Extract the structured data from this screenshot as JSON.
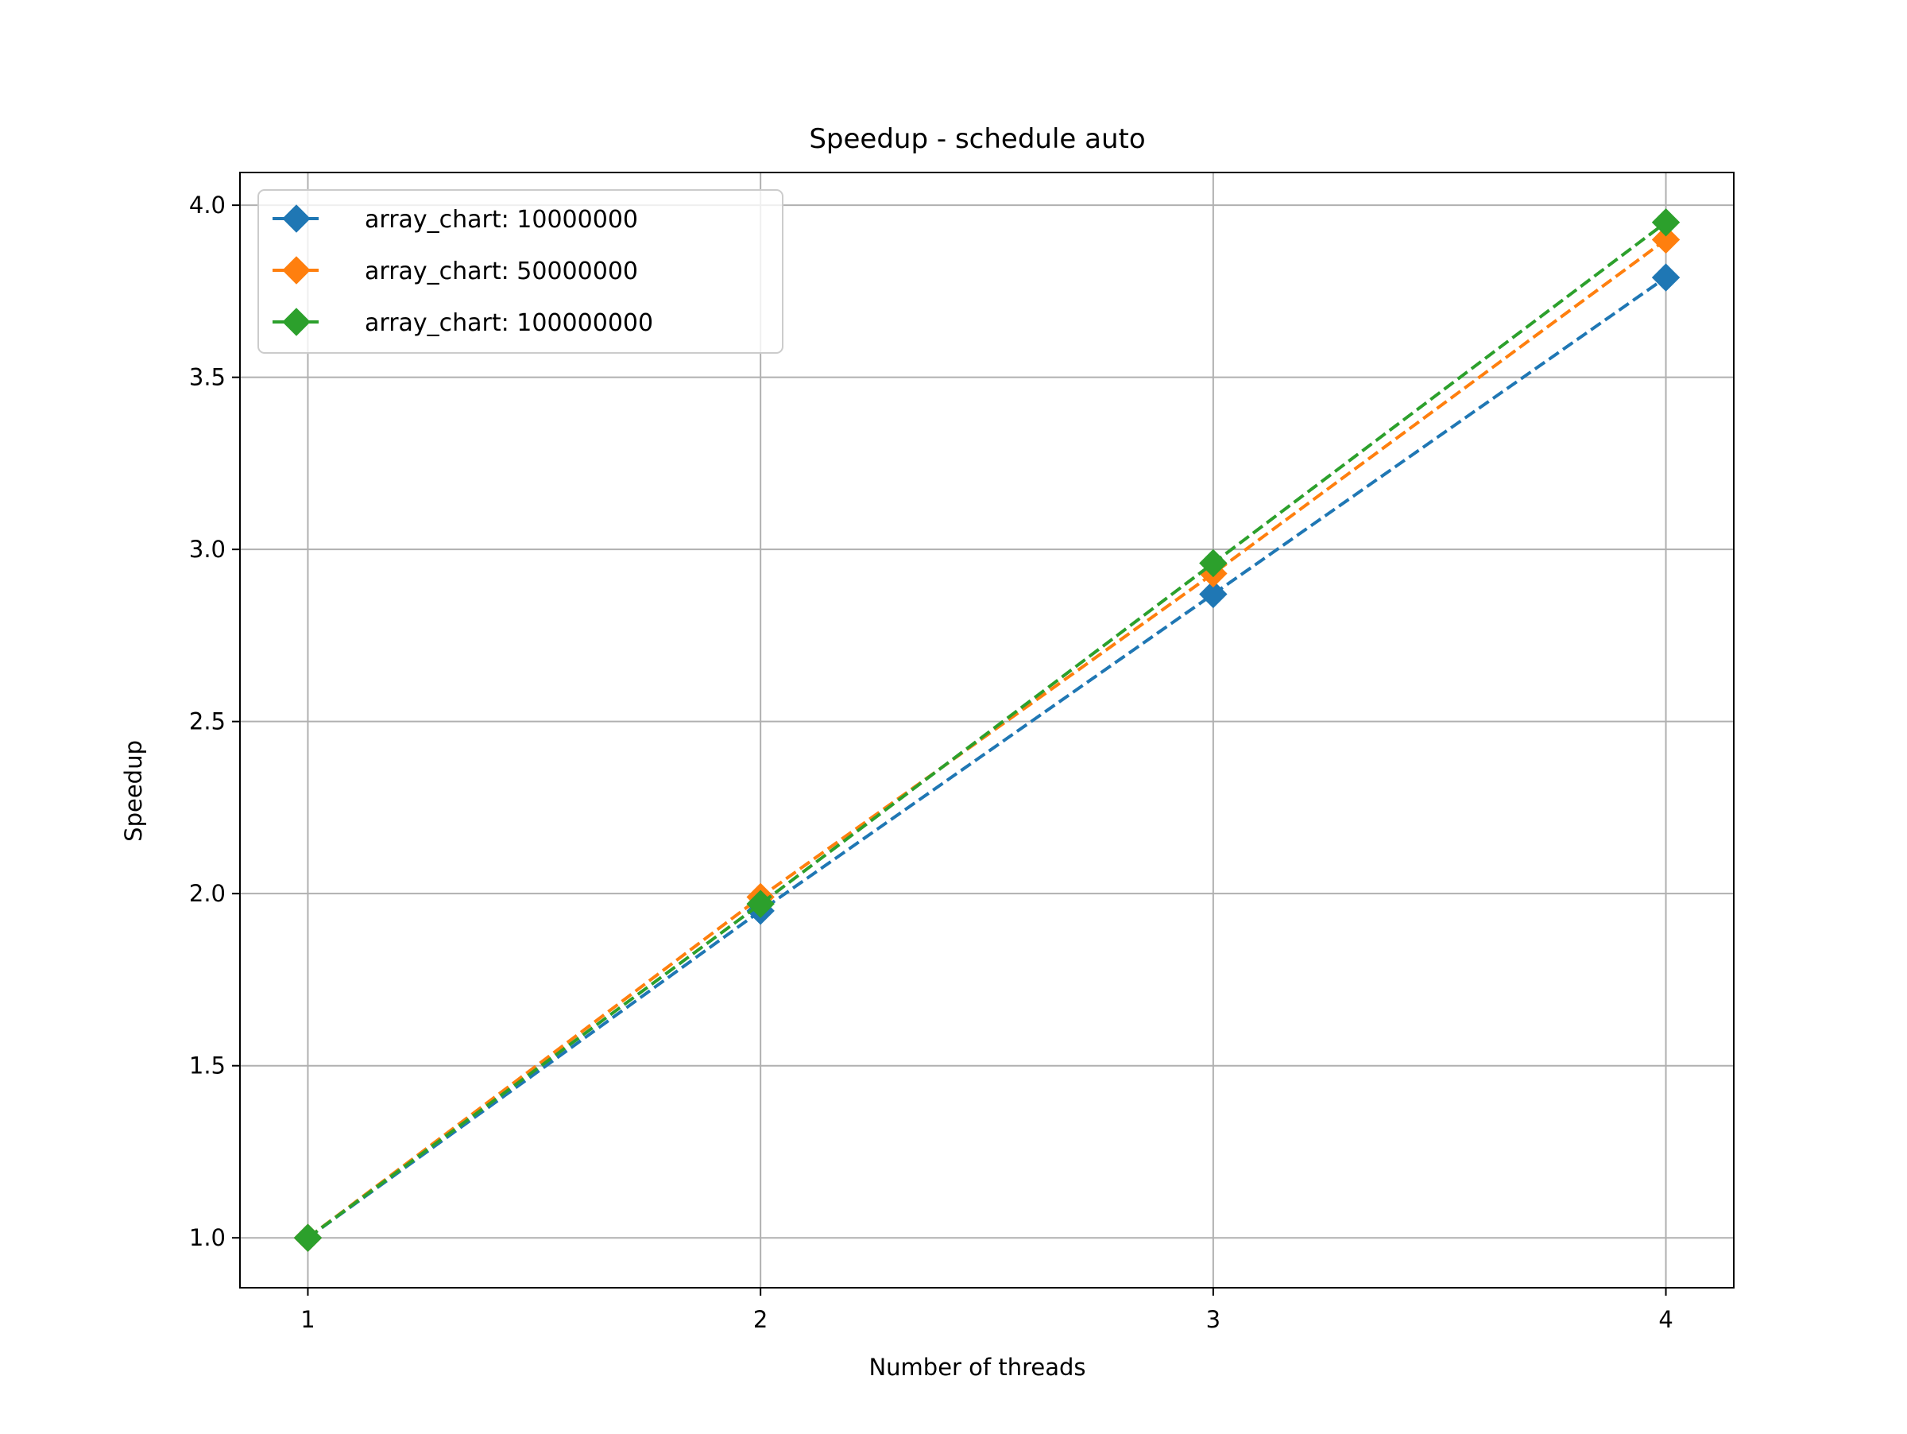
{
  "chart_data": {
    "type": "line",
    "title": "Speedup - schedule auto",
    "xlabel": "Number of threads",
    "ylabel": "Speedup",
    "x": [
      1,
      2,
      3,
      4
    ],
    "xticks": [
      "1",
      "2",
      "3",
      "4"
    ],
    "yticks": [
      "1.0",
      "1.5",
      "2.0",
      "2.5",
      "3.0",
      "3.5",
      "4.0"
    ],
    "xlim": [
      0.85,
      4.15
    ],
    "ylim": [
      0.855,
      4.095
    ],
    "grid": true,
    "legend_position": "top-left",
    "series": [
      {
        "name": "array_chart: 10000000",
        "color": "#1f77b4",
        "values": [
          1.0,
          1.95,
          2.87,
          3.79
        ]
      },
      {
        "name": "array_chart: 50000000",
        "color": "#ff7f0e",
        "values": [
          1.0,
          1.99,
          2.93,
          3.9
        ]
      },
      {
        "name": "array_chart: 100000000",
        "color": "#2ca02c",
        "values": [
          1.0,
          1.97,
          2.96,
          3.95
        ]
      }
    ]
  }
}
